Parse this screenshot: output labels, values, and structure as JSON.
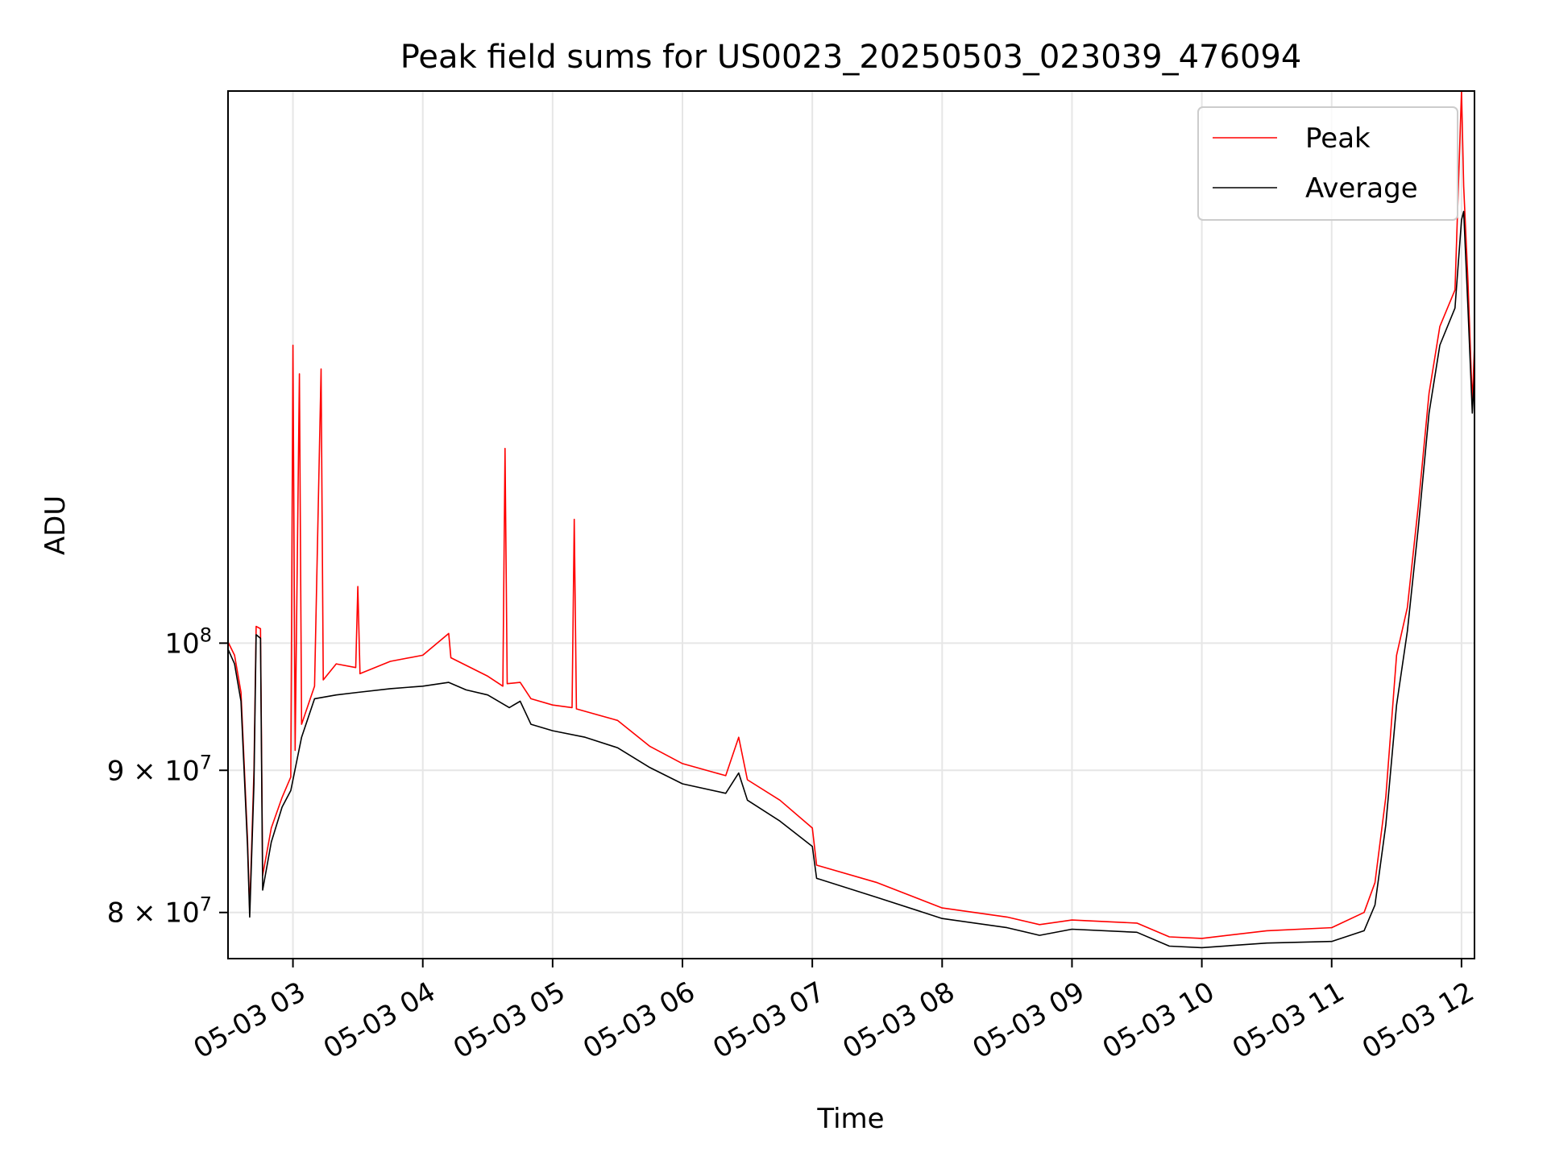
{
  "chart_data": {
    "type": "line",
    "title": "Peak field sums for US0023_20250503_023039_476094",
    "xlabel": "Time",
    "ylabel": "ADU",
    "yscale": "log",
    "xlim": [
      "2025-05-03 02:30",
      "2025-05-03 12:06"
    ],
    "ylim": [
      77000000,
      158000000
    ],
    "grid": true,
    "legend": "top-right",
    "x_ticks": [
      {
        "value": "2025-05-03 03:00",
        "label": "05-03 03"
      },
      {
        "value": "2025-05-03 04:00",
        "label": "05-03 04"
      },
      {
        "value": "2025-05-03 05:00",
        "label": "05-03 05"
      },
      {
        "value": "2025-05-03 06:00",
        "label": "05-03 06"
      },
      {
        "value": "2025-05-03 07:00",
        "label": "05-03 07"
      },
      {
        "value": "2025-05-03 08:00",
        "label": "05-03 08"
      },
      {
        "value": "2025-05-03 09:00",
        "label": "05-03 09"
      },
      {
        "value": "2025-05-03 10:00",
        "label": "05-03 10"
      },
      {
        "value": "2025-05-03 11:00",
        "label": "05-03 11"
      },
      {
        "value": "2025-05-03 12:00",
        "label": "05-03 12"
      }
    ],
    "y_ticks": [
      {
        "value": 80000000,
        "base": "8",
        "mult": "×",
        "pow": "10",
        "exp": "7"
      },
      {
        "value": 90000000,
        "base": "9",
        "mult": "×",
        "pow": "10",
        "exp": "7"
      },
      {
        "value": 100000000,
        "base": "",
        "mult": "",
        "pow": "10",
        "exp": "8"
      }
    ],
    "series": [
      {
        "name": "Peak",
        "color": "#ff0000",
        "points": [
          [
            "2025-05-03 02:30",
            100100000
          ],
          [
            "2025-05-03 02:33",
            99000000
          ],
          [
            "2025-05-03 02:36",
            96000000
          ],
          [
            "2025-05-03 02:39",
            85000000
          ],
          [
            "2025-05-03 02:40",
            80100000
          ],
          [
            "2025-05-03 02:42",
            90000000
          ],
          [
            "2025-05-03 02:43",
            101400000
          ],
          [
            "2025-05-03 02:45",
            101200000
          ],
          [
            "2025-05-03 02:46",
            82500000
          ],
          [
            "2025-05-03 02:50",
            85800000
          ],
          [
            "2025-05-03 02:55",
            88000000
          ],
          [
            "2025-05-03 02:59",
            89500000
          ],
          [
            "2025-05-03 03:00",
            128000000
          ],
          [
            "2025-05-03 03:01",
            91500000
          ],
          [
            "2025-05-03 03:03",
            125000000
          ],
          [
            "2025-05-03 03:04",
            93500000
          ],
          [
            "2025-05-03 03:10",
            96500000
          ],
          [
            "2025-05-03 03:13",
            125500000
          ],
          [
            "2025-05-03 03:14",
            97000000
          ],
          [
            "2025-05-03 03:20",
            98300000
          ],
          [
            "2025-05-03 03:29",
            98000000
          ],
          [
            "2025-05-03 03:30",
            104800000
          ],
          [
            "2025-05-03 03:31",
            97500000
          ],
          [
            "2025-05-03 03:45",
            98500000
          ],
          [
            "2025-05-03 04:00",
            99000000
          ],
          [
            "2025-05-03 04:12",
            100800000
          ],
          [
            "2025-05-03 04:13",
            98800000
          ],
          [
            "2025-05-03 04:30",
            97300000
          ],
          [
            "2025-05-03 04:37",
            96500000
          ],
          [
            "2025-05-03 04:38",
            117500000
          ],
          [
            "2025-05-03 04:39",
            96700000
          ],
          [
            "2025-05-03 04:45",
            96800000
          ],
          [
            "2025-05-03 04:50",
            95500000
          ],
          [
            "2025-05-03 05:00",
            95000000
          ],
          [
            "2025-05-03 05:09",
            94800000
          ],
          [
            "2025-05-03 05:10",
            110800000
          ],
          [
            "2025-05-03 05:11",
            94700000
          ],
          [
            "2025-05-03 05:30",
            93800000
          ],
          [
            "2025-05-03 05:45",
            91800000
          ],
          [
            "2025-05-03 06:00",
            90500000
          ],
          [
            "2025-05-03 06:20",
            89600000
          ],
          [
            "2025-05-03 06:26",
            92500000
          ],
          [
            "2025-05-03 06:30",
            89300000
          ],
          [
            "2025-05-03 06:45",
            87800000
          ],
          [
            "2025-05-03 07:00",
            85800000
          ],
          [
            "2025-05-03 07:02",
            83200000
          ],
          [
            "2025-05-03 07:30",
            82000000
          ],
          [
            "2025-05-03 08:00",
            80300000
          ],
          [
            "2025-05-03 08:30",
            79700000
          ],
          [
            "2025-05-03 08:45",
            79200000
          ],
          [
            "2025-05-03 09:00",
            79500000
          ],
          [
            "2025-05-03 09:30",
            79300000
          ],
          [
            "2025-05-03 09:45",
            78400000
          ],
          [
            "2025-05-03 10:00",
            78300000
          ],
          [
            "2025-05-03 10:30",
            78800000
          ],
          [
            "2025-05-03 11:00",
            79000000
          ],
          [
            "2025-05-03 11:15",
            80000000
          ],
          [
            "2025-05-03 11:20",
            82000000
          ],
          [
            "2025-05-03 11:25",
            88000000
          ],
          [
            "2025-05-03 11:30",
            99000000
          ],
          [
            "2025-05-03 11:35",
            103000000
          ],
          [
            "2025-05-03 11:40",
            112000000
          ],
          [
            "2025-05-03 11:45",
            123000000
          ],
          [
            "2025-05-03 11:50",
            130000000
          ],
          [
            "2025-05-03 11:57",
            134000000
          ],
          [
            "2025-05-03 12:00",
            158000000
          ],
          [
            "2025-05-03 12:01",
            146000000
          ],
          [
            "2025-05-03 12:03",
            135000000
          ],
          [
            "2025-05-03 12:05",
            122000000
          ],
          [
            "2025-05-03 12:06",
            128000000
          ]
        ]
      },
      {
        "name": "Average",
        "color": "#000000",
        "points": [
          [
            "2025-05-03 02:30",
            99500000
          ],
          [
            "2025-05-03 02:33",
            98300000
          ],
          [
            "2025-05-03 02:36",
            95300000
          ],
          [
            "2025-05-03 02:39",
            84500000
          ],
          [
            "2025-05-03 02:40",
            79700000
          ],
          [
            "2025-05-03 02:42",
            89000000
          ],
          [
            "2025-05-03 02:43",
            100700000
          ],
          [
            "2025-05-03 02:45",
            100400000
          ],
          [
            "2025-05-03 02:46",
            81500000
          ],
          [
            "2025-05-03 02:50",
            84800000
          ],
          [
            "2025-05-03 02:55",
            87300000
          ],
          [
            "2025-05-03 02:59",
            88500000
          ],
          [
            "2025-05-03 03:04",
            92500000
          ],
          [
            "2025-05-03 03:10",
            95500000
          ],
          [
            "2025-05-03 03:20",
            95800000
          ],
          [
            "2025-05-03 03:30",
            96000000
          ],
          [
            "2025-05-03 03:45",
            96300000
          ],
          [
            "2025-05-03 04:00",
            96500000
          ],
          [
            "2025-05-03 04:12",
            96800000
          ],
          [
            "2025-05-03 04:20",
            96200000
          ],
          [
            "2025-05-03 04:30",
            95800000
          ],
          [
            "2025-05-03 04:40",
            94800000
          ],
          [
            "2025-05-03 04:45",
            95300000
          ],
          [
            "2025-05-03 04:50",
            93500000
          ],
          [
            "2025-05-03 05:00",
            93000000
          ],
          [
            "2025-05-03 05:15",
            92500000
          ],
          [
            "2025-05-03 05:30",
            91700000
          ],
          [
            "2025-05-03 05:45",
            90200000
          ],
          [
            "2025-05-03 06:00",
            89000000
          ],
          [
            "2025-05-03 06:20",
            88300000
          ],
          [
            "2025-05-03 06:26",
            89800000
          ],
          [
            "2025-05-03 06:30",
            87800000
          ],
          [
            "2025-05-03 06:45",
            86300000
          ],
          [
            "2025-05-03 07:00",
            84500000
          ],
          [
            "2025-05-03 07:02",
            82300000
          ],
          [
            "2025-05-03 07:30",
            81000000
          ],
          [
            "2025-05-03 08:00",
            79600000
          ],
          [
            "2025-05-03 08:30",
            79000000
          ],
          [
            "2025-05-03 08:45",
            78500000
          ],
          [
            "2025-05-03 09:00",
            78900000
          ],
          [
            "2025-05-03 09:30",
            78700000
          ],
          [
            "2025-05-03 09:45",
            77800000
          ],
          [
            "2025-05-03 10:00",
            77700000
          ],
          [
            "2025-05-03 10:30",
            78000000
          ],
          [
            "2025-05-03 11:00",
            78100000
          ],
          [
            "2025-05-03 11:15",
            78800000
          ],
          [
            "2025-05-03 11:20",
            80500000
          ],
          [
            "2025-05-03 11:25",
            86000000
          ],
          [
            "2025-05-03 11:30",
            95000000
          ],
          [
            "2025-05-03 11:35",
            101000000
          ],
          [
            "2025-05-03 11:40",
            110000000
          ],
          [
            "2025-05-03 11:45",
            121000000
          ],
          [
            "2025-05-03 11:50",
            128000000
          ],
          [
            "2025-05-03 11:57",
            132000000
          ],
          [
            "2025-05-03 12:00",
            142000000
          ],
          [
            "2025-05-03 12:01",
            143000000
          ],
          [
            "2025-05-03 12:03",
            132000000
          ],
          [
            "2025-05-03 12:05",
            121000000
          ],
          [
            "2025-05-03 12:06",
            125000000
          ]
        ]
      }
    ]
  }
}
